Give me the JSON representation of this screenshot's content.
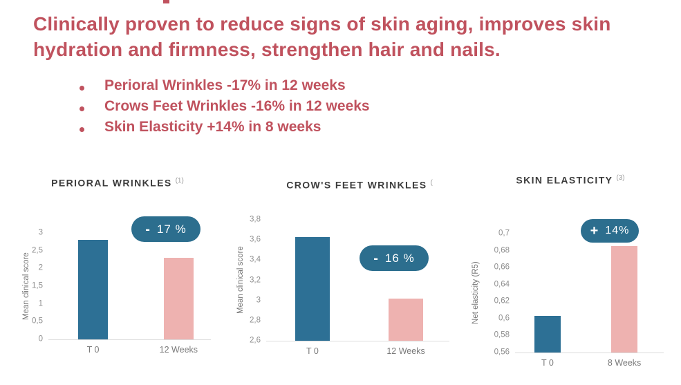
{
  "header": {
    "title_lines": [
      "Clinically proven to reduce signs of skin aging, improves skin",
      "hydration and firmness, strengthen hair and nails."
    ]
  },
  "bullets": [
    "Perioral Wrinkles -17% in 12 weeks",
    "Crows Feet Wrinkles -16% in 12 weeks",
    "Skin Elasticity +14% in 8 weeks"
  ],
  "colors": {
    "accent_red": "#c0525e",
    "bar_blue": "#2d7095",
    "bar_pink": "#eeb2b0",
    "badge_teal": "#2c6e8e",
    "axis_gray": "#8e8e8e"
  },
  "chart_data": [
    {
      "type": "bar",
      "title": "PERIORAL WRINKLES",
      "footnote_sup": "(1)",
      "ylabel": "Mean clinical score",
      "categories": [
        "T 0",
        "12 Weeks"
      ],
      "values": [
        2.8,
        2.3
      ],
      "ylim": [
        0,
        3
      ],
      "yticks": [
        "3",
        "2,5",
        "2",
        "1,5",
        "1",
        "0,5",
        "0"
      ],
      "badge": {
        "sign": "-",
        "label": "17 %"
      },
      "bar_colors": [
        "#2d7095",
        "#eeb2b0"
      ],
      "grid": false,
      "legend": false
    },
    {
      "type": "bar",
      "title": "CROW'S FEET WRINKLES",
      "footnote_sup": "(",
      "ylabel": "Mean clinical score",
      "categories": [
        "T 0",
        "12 Weeks"
      ],
      "values": [
        3.63,
        3.02
      ],
      "ylim": [
        2.6,
        3.8
      ],
      "yticks": [
        "3,8",
        "3,6",
        "3,4",
        "3,2",
        "3",
        "2,8",
        "2,6"
      ],
      "badge": {
        "sign": "-",
        "label": "16 %"
      },
      "bar_colors": [
        "#2d7095",
        "#eeb2b0"
      ],
      "grid": false,
      "legend": false
    },
    {
      "type": "bar",
      "title": "SKIN ELASTICITY",
      "footnote_sup": "(3)",
      "ylabel": "Net elasticity (R5)",
      "categories": [
        "T 0",
        "8 Weeks"
      ],
      "values": [
        0.603,
        0.685
      ],
      "ylim": [
        0.56,
        0.7
      ],
      "yticks": [
        "0,7",
        "0,68",
        "0,66",
        "0,64",
        "0,62",
        "0,6",
        "0,58",
        "0,56"
      ],
      "badge": {
        "sign": "+",
        "label": "14%"
      },
      "bar_colors": [
        "#2d7095",
        "#eeb2b0"
      ],
      "grid": false,
      "legend": false
    }
  ]
}
